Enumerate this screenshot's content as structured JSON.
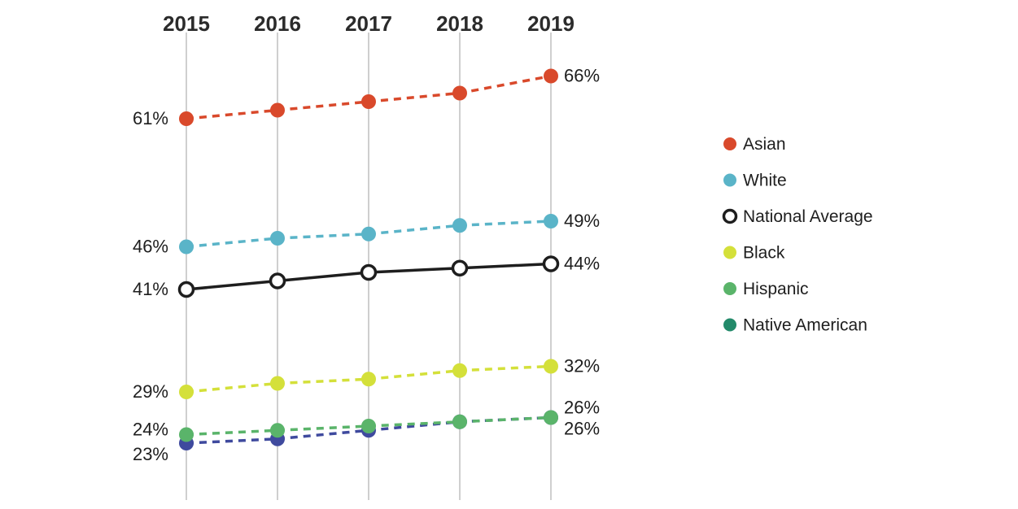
{
  "chart_data": {
    "type": "line",
    "x": [
      "2015",
      "2016",
      "2017",
      "2018",
      "2019"
    ],
    "ylim": [
      20,
      68
    ],
    "grid": "vertical",
    "legend_position": "right",
    "series": [
      {
        "name": "Asian",
        "values": [
          61,
          62,
          63,
          64,
          66
        ],
        "color": "#d9492b",
        "style": "dashed",
        "marker": "filled",
        "start_label": "61%",
        "end_label": "66%"
      },
      {
        "name": "White",
        "values": [
          46,
          47,
          47.5,
          48.5,
          49
        ],
        "color": "#5ab4c8",
        "style": "dashed",
        "marker": "filled",
        "start_label": "46%",
        "end_label": "49%"
      },
      {
        "name": "National Average",
        "values": [
          41,
          42,
          43,
          43.5,
          44
        ],
        "color": "#1e1e1e",
        "style": "solid",
        "marker": "hollow",
        "start_label": "41%",
        "end_label": "44%"
      },
      {
        "name": "Black",
        "values": [
          29,
          30,
          30.5,
          31.5,
          32
        ],
        "color": "#d4e03a",
        "style": "dashed",
        "marker": "filled",
        "start_label": "29%",
        "end_label": "32%"
      },
      {
        "name": "Hispanic",
        "values": [
          24,
          24.5,
          25,
          25.5,
          26
        ],
        "color": "#5ab46a",
        "style": "dashed",
        "marker": "filled",
        "start_label": "24%",
        "end_label": "26%"
      },
      {
        "name": "Native American",
        "values": [
          23,
          23.5,
          24.5,
          25.5,
          26
        ],
        "color": "#3f4a9e",
        "style": "dashed",
        "marker": "filled",
        "start_label": "23%",
        "end_label": "26%"
      }
    ],
    "legend": [
      {
        "label": "Asian",
        "color": "#d9492b",
        "marker": "filled"
      },
      {
        "label": "White",
        "color": "#5ab4c8",
        "marker": "filled"
      },
      {
        "label": "National Average",
        "color": "#1e1e1e",
        "marker": "hollow"
      },
      {
        "label": "Black",
        "color": "#d4e03a",
        "marker": "filled"
      },
      {
        "label": "Hispanic",
        "color": "#5ab46a",
        "marker": "filled"
      },
      {
        "label": "Native American",
        "color": "#238a6a",
        "marker": "filled"
      }
    ]
  }
}
